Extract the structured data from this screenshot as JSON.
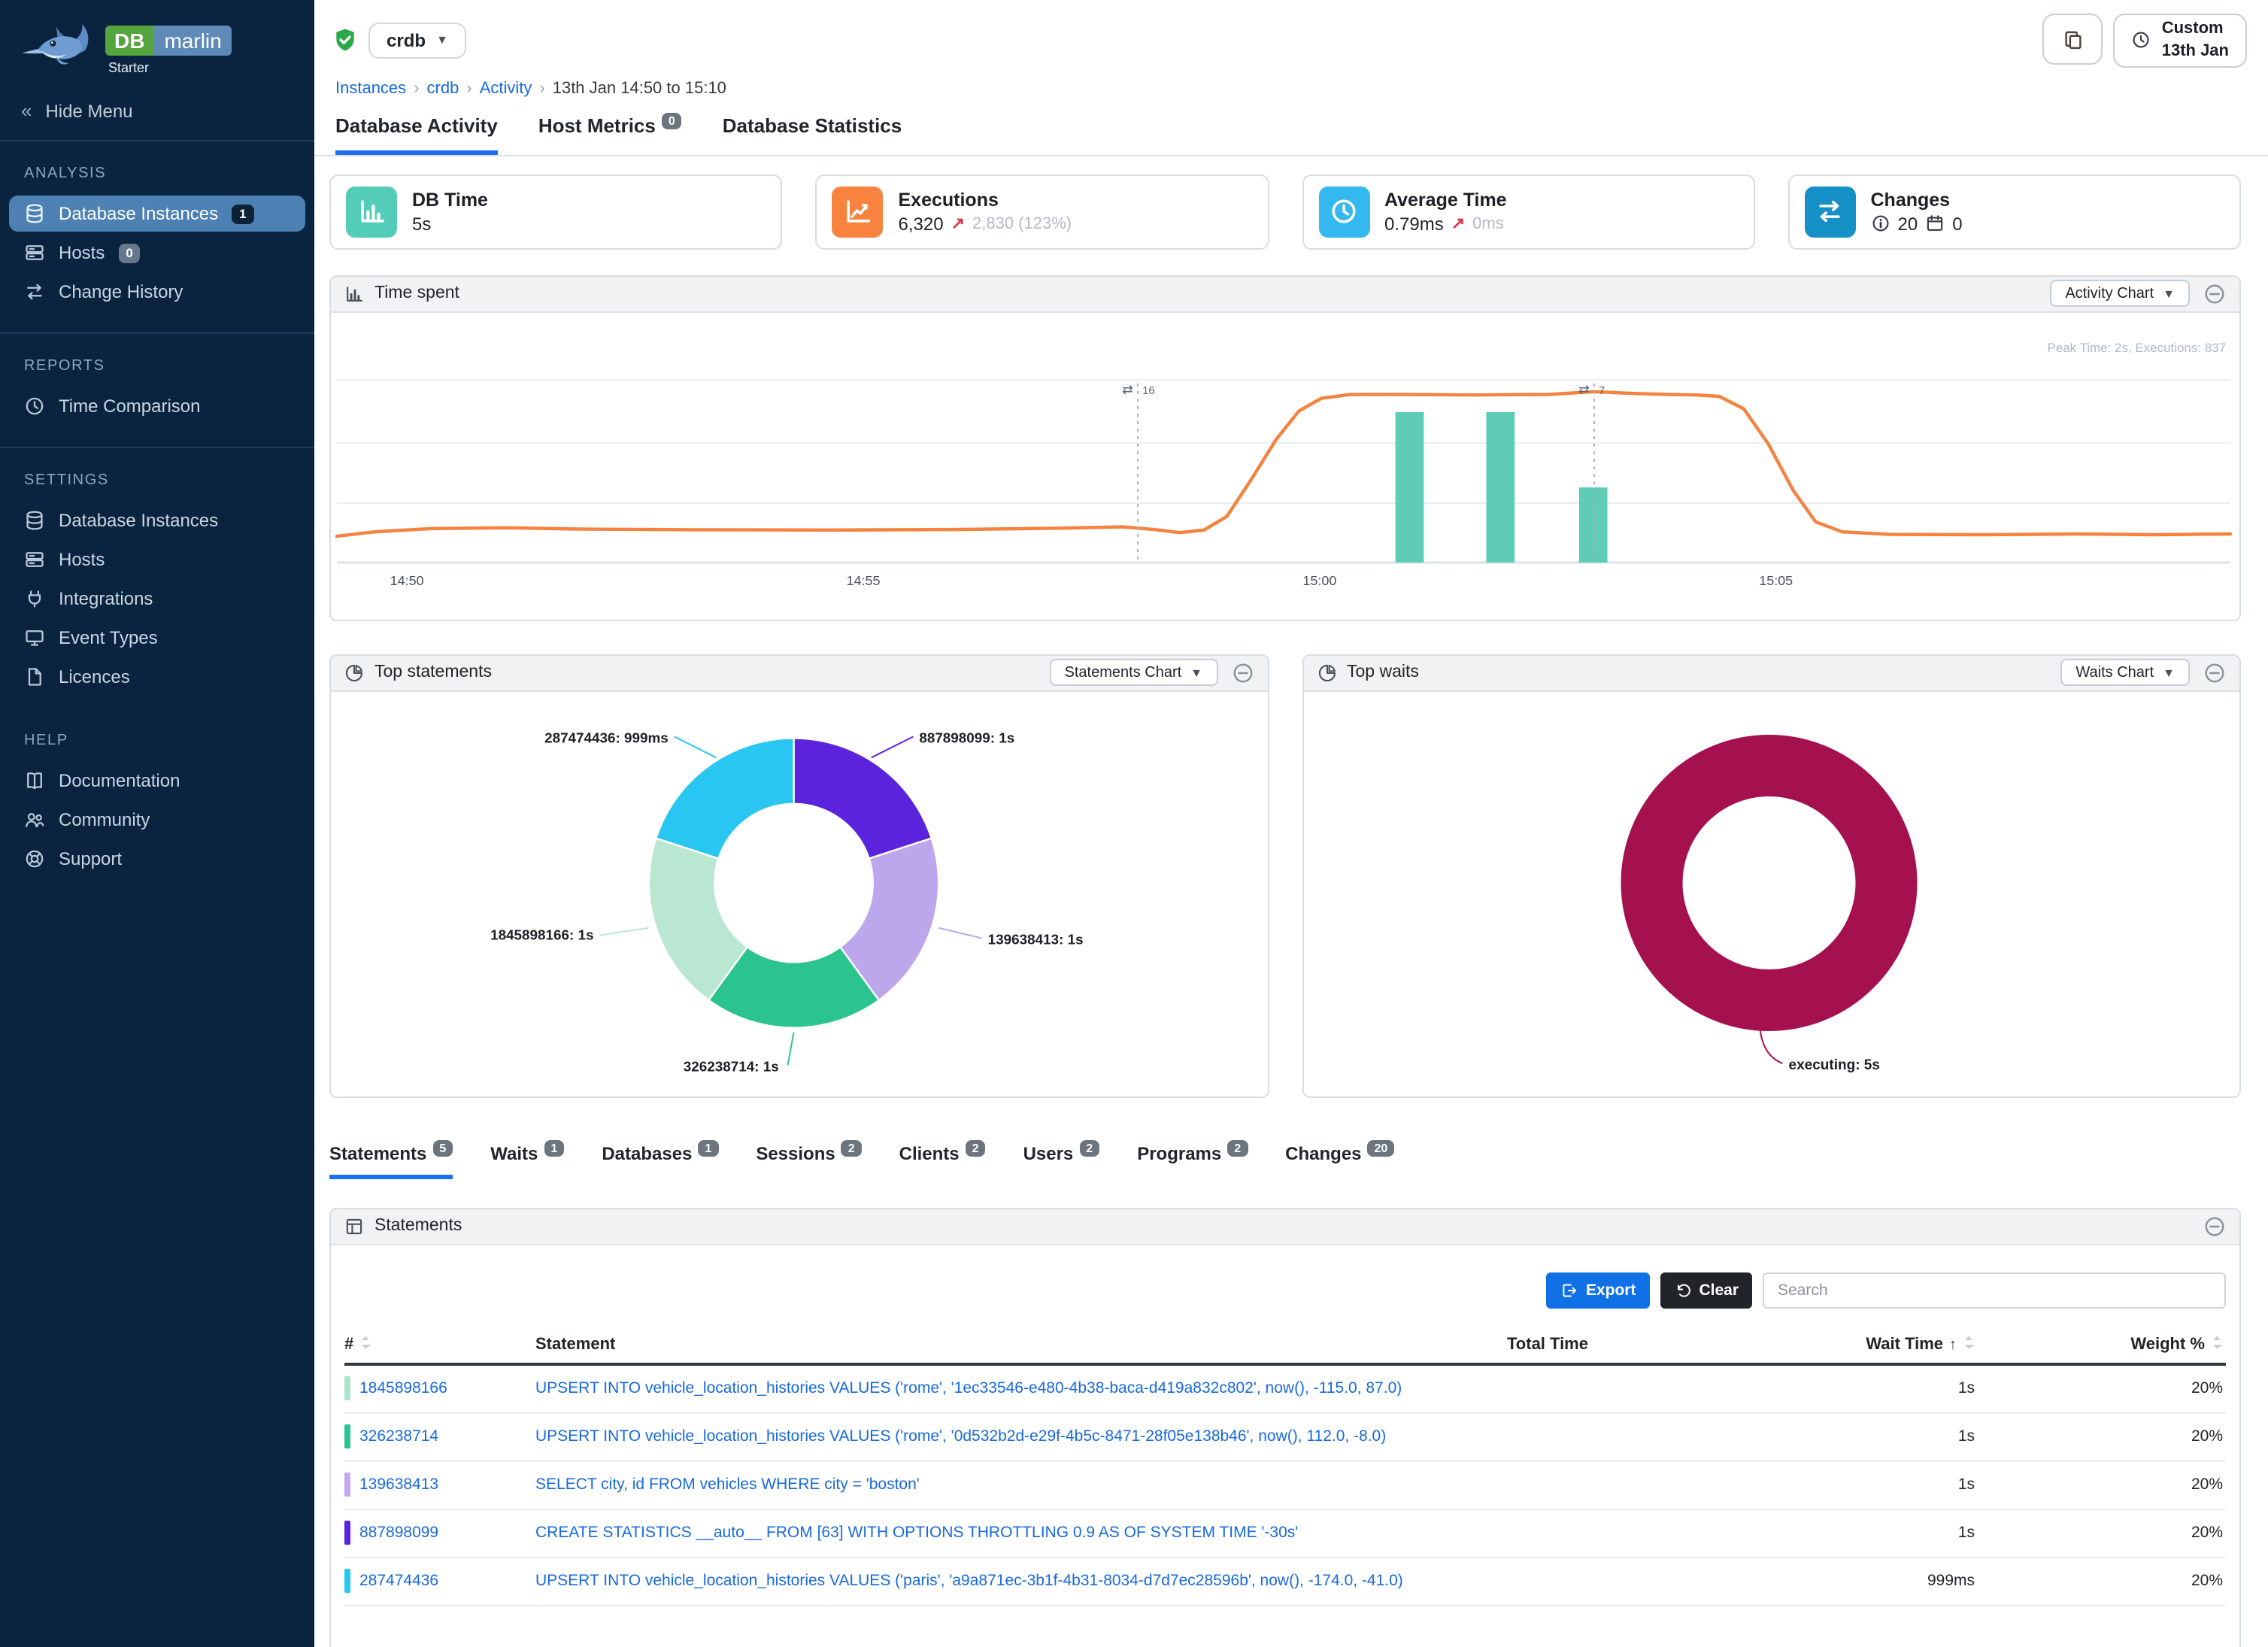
{
  "brand": {
    "name_db": "DB",
    "name_marlin": "marlin",
    "tier": "Starter"
  },
  "sidebar": {
    "hide_menu": "Hide Menu",
    "sections": [
      {
        "title": "ANALYSIS",
        "items": [
          {
            "label": "Database Instances",
            "badge": "1",
            "icon": "database-icon",
            "active": true
          },
          {
            "label": "Hosts",
            "badge": "0",
            "icon": "server-icon"
          },
          {
            "label": "Change History",
            "icon": "swap-icon"
          }
        ]
      },
      {
        "title": "REPORTS",
        "items": [
          {
            "label": "Time Comparison",
            "icon": "clock-icon"
          }
        ]
      },
      {
        "title": "SETTINGS",
        "items": [
          {
            "label": "Database Instances",
            "icon": "database-icon"
          },
          {
            "label": "Hosts",
            "icon": "server-icon"
          },
          {
            "label": "Integrations",
            "icon": "plug-icon"
          },
          {
            "label": "Event Types",
            "icon": "monitor-icon"
          },
          {
            "label": "Licences",
            "icon": "license-icon"
          }
        ]
      },
      {
        "title": "HELP",
        "items": [
          {
            "label": "Documentation",
            "icon": "book-icon"
          },
          {
            "label": "Community",
            "icon": "people-icon"
          },
          {
            "label": "Support",
            "icon": "support-icon"
          }
        ]
      }
    ]
  },
  "header": {
    "instance": "crdb",
    "breadcrumb": {
      "items": [
        "Instances",
        "crdb",
        "Activity"
      ],
      "current": "13th Jan 14:50 to 15:10",
      "separator": "›"
    },
    "time_button": {
      "line1": "Custom",
      "line2": "13th Jan"
    },
    "tabs": [
      {
        "label": "Database Activity",
        "active": true
      },
      {
        "label": "Host Metrics",
        "badge": "0"
      },
      {
        "label": "Database Statistics"
      }
    ]
  },
  "kpis": [
    {
      "title": "DB Time",
      "value": "5s",
      "accent": "#53cdb8",
      "icon": "bar-chart-icon"
    },
    {
      "title": "Executions",
      "value": "6,320",
      "arrow": "↗",
      "delta": "2,830 (123%)",
      "accent": "#f7833f",
      "icon": "line-chart-icon"
    },
    {
      "title": "Average Time",
      "value": "0.79ms",
      "arrow": "↗",
      "delta": "0ms",
      "accent": "#33b8f0",
      "icon": "clock-icon"
    },
    {
      "title": "Changes",
      "count_info": "20",
      "count_events": "0",
      "accent": "#1591c8",
      "icon": "swap-icon"
    }
  ],
  "time_spent": {
    "title": "Time spent",
    "menu_button": "Activity Chart",
    "annotation": "Peak Time: 2s, Executions: 837",
    "chart": {
      "type": "line+bar",
      "line_color": "#f5823f",
      "bar_color": "#5fcdb5",
      "x_ticks": [
        {
          "label": "14:50",
          "f": 0.037
        },
        {
          "label": "14:55",
          "f": 0.278
        },
        {
          "label": "15:00",
          "f": 0.519
        },
        {
          "label": "15:05",
          "f": 0.76
        }
      ],
      "line_points": [
        [
          0.0,
          0.12
        ],
        [
          0.02,
          0.14
        ],
        [
          0.05,
          0.155
        ],
        [
          0.09,
          0.158
        ],
        [
          0.13,
          0.152
        ],
        [
          0.19,
          0.149
        ],
        [
          0.26,
          0.148
        ],
        [
          0.33,
          0.151
        ],
        [
          0.385,
          0.157
        ],
        [
          0.415,
          0.162
        ],
        [
          0.432,
          0.15
        ],
        [
          0.445,
          0.136
        ],
        [
          0.458,
          0.148
        ],
        [
          0.47,
          0.21
        ],
        [
          0.483,
          0.38
        ],
        [
          0.496,
          0.56
        ],
        [
          0.508,
          0.69
        ],
        [
          0.52,
          0.748
        ],
        [
          0.535,
          0.765
        ],
        [
          0.56,
          0.766
        ],
        [
          0.6,
          0.763
        ],
        [
          0.64,
          0.766
        ],
        [
          0.664,
          0.778
        ],
        [
          0.685,
          0.77
        ],
        [
          0.705,
          0.765
        ],
        [
          0.718,
          0.763
        ],
        [
          0.73,
          0.757
        ],
        [
          0.743,
          0.7
        ],
        [
          0.756,
          0.54
        ],
        [
          0.769,
          0.33
        ],
        [
          0.781,
          0.185
        ],
        [
          0.795,
          0.14
        ],
        [
          0.82,
          0.128
        ],
        [
          0.87,
          0.127
        ],
        [
          0.92,
          0.13
        ],
        [
          0.96,
          0.127
        ],
        [
          1.0,
          0.13
        ]
      ],
      "bars": [
        {
          "f": 0.559,
          "w": 0.015,
          "h": 0.685
        },
        {
          "f": 0.607,
          "w": 0.015,
          "h": 0.685
        },
        {
          "f": 0.656,
          "w": 0.015,
          "h": 0.342
        }
      ],
      "markers": [
        {
          "f": 0.423,
          "label": "16",
          "glyph": "⇄"
        },
        {
          "f": 0.664,
          "label": "7",
          "glyph": "⇄"
        }
      ]
    }
  },
  "top_statements": {
    "title": "Top statements",
    "menu_button": "Statements Chart",
    "chart": {
      "type": "donut",
      "slices": [
        {
          "id": "887898099",
          "value": "1s",
          "label": "887898099: 1s",
          "color": "#5c23dd"
        },
        {
          "id": "139638413",
          "value": "1s",
          "label": "139638413: 1s",
          "color": "#bda7ec"
        },
        {
          "id": "326238714",
          "value": "1s",
          "label": "326238714: 1s",
          "color": "#2bc48f"
        },
        {
          "id": "1845898166",
          "value": "1s",
          "label": "1845898166: 1s",
          "color": "#b9e7d2"
        },
        {
          "id": "287474436",
          "value": "999ms",
          "label": "287474436: 999ms",
          "color": "#28c6f0"
        }
      ]
    }
  },
  "top_waits": {
    "title": "Top waits",
    "menu_button": "Waits Chart",
    "chart": {
      "type": "donut",
      "slices": [
        {
          "id": "executing",
          "value": "5s",
          "label": "executing: 5s",
          "color": "#a5104f"
        }
      ]
    }
  },
  "detail_tabs": [
    {
      "label": "Statements",
      "badge": "5",
      "active": true
    },
    {
      "label": "Waits",
      "badge": "1"
    },
    {
      "label": "Databases",
      "badge": "1"
    },
    {
      "label": "Sessions",
      "badge": "2"
    },
    {
      "label": "Clients",
      "badge": "2"
    },
    {
      "label": "Users",
      "badge": "2"
    },
    {
      "label": "Programs",
      "badge": "2"
    },
    {
      "label": "Changes",
      "badge": "20"
    }
  ],
  "statements_panel": {
    "title": "Statements",
    "export_label": "Export",
    "clear_label": "Clear",
    "search_placeholder": "Search",
    "total_bar_color": "#a5104f",
    "columns": {
      "num": "#",
      "statement": "Statement",
      "total": "Total Time",
      "wait": "Wait Time",
      "weight": "Weight %"
    },
    "rows": [
      {
        "id": "1845898166",
        "color": "#a9e4cd",
        "statement": "UPSERT INTO vehicle_location_histories VALUES ('rome', '1ec33546-e480-4b38-baca-d419a832c802', now(), -115.0, 87.0)",
        "wait": "1s",
        "weight": "20%"
      },
      {
        "id": "326238714",
        "color": "#2bc48f",
        "statement": "UPSERT INTO vehicle_location_histories VALUES ('rome', '0d532b2d-e29f-4b5c-8471-28f05e138b46', now(), 112.0, -8.0)",
        "wait": "1s",
        "weight": "20%"
      },
      {
        "id": "139638413",
        "color": "#c3a8f0",
        "statement": "SELECT city, id FROM vehicles WHERE city = 'boston'",
        "wait": "1s",
        "weight": "20%"
      },
      {
        "id": "887898099",
        "color": "#5c23dd",
        "statement": "CREATE STATISTICS __auto__ FROM [63] WITH OPTIONS THROTTLING 0.9 AS OF SYSTEM TIME '-30s'",
        "wait": "1s",
        "weight": "20%"
      },
      {
        "id": "287474436",
        "color": "#28c6f0",
        "statement": "UPSERT INTO vehicle_location_histories VALUES ('paris', 'a9a871ec-3b1f-4b31-8034-d7d7ec28596b', now(), -174.0, -41.0)",
        "wait": "999ms",
        "weight": "20%"
      }
    ]
  }
}
